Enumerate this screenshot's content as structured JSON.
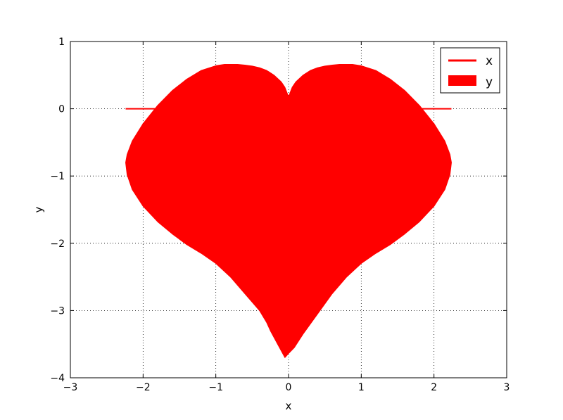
{
  "chart_data": {
    "type": "area",
    "xlabel": "x",
    "ylabel": "y",
    "xlim": [
      -3,
      3
    ],
    "ylim": [
      -4,
      1
    ],
    "xticks": [
      -3,
      -2,
      -1,
      0,
      1,
      2,
      3
    ],
    "yticks": [
      -4,
      -3,
      -2,
      -1,
      0,
      1
    ],
    "xtick_labels": [
      "−3",
      "−2",
      "−1",
      "0",
      "1",
      "2",
      "3"
    ],
    "ytick_labels": [
      "−4",
      "−3",
      "−2",
      "−1",
      "0",
      "1"
    ],
    "grid": true,
    "legend_placement": "top-right",
    "series": [
      {
        "name": "x",
        "kind": "line",
        "color": "#ff0000",
        "x": [
          -2.24,
          2.24
        ],
        "y": [
          0,
          0
        ]
      },
      {
        "name": "y",
        "kind": "fill",
        "color": "#ff0000",
        "outline": [
          [
            0.0,
            0.18
          ],
          [
            0.05,
            0.32
          ],
          [
            0.1,
            0.4
          ],
          [
            0.2,
            0.5
          ],
          [
            0.3,
            0.57
          ],
          [
            0.4,
            0.61
          ],
          [
            0.5,
            0.635
          ],
          [
            0.6,
            0.65
          ],
          [
            0.7,
            0.66
          ],
          [
            0.8,
            0.66
          ],
          [
            0.88,
            0.66
          ],
          [
            1.0,
            0.64
          ],
          [
            1.2,
            0.57
          ],
          [
            1.4,
            0.44
          ],
          [
            1.6,
            0.27
          ],
          [
            1.8,
            0.05
          ],
          [
            2.0,
            -0.22
          ],
          [
            2.15,
            -0.48
          ],
          [
            2.22,
            -0.68
          ],
          [
            2.24,
            -0.8
          ],
          [
            2.22,
            -0.98
          ],
          [
            2.15,
            -1.2
          ],
          [
            2.0,
            -1.45
          ],
          [
            1.8,
            -1.68
          ],
          [
            1.6,
            -1.86
          ],
          [
            1.4,
            -2.02
          ],
          [
            1.2,
            -2.15
          ],
          [
            1.0,
            -2.3
          ],
          [
            0.8,
            -2.5
          ],
          [
            0.6,
            -2.75
          ],
          [
            0.4,
            -3.05
          ],
          [
            0.2,
            -3.35
          ],
          [
            0.08,
            -3.55
          ],
          [
            0.0,
            -3.64
          ],
          [
            -0.05,
            -3.7
          ],
          [
            -0.15,
            -3.5
          ],
          [
            -0.25,
            -3.3
          ],
          [
            -0.3,
            -3.18
          ],
          [
            -0.4,
            -3.0
          ],
          [
            -0.6,
            -2.75
          ],
          [
            -0.8,
            -2.5
          ],
          [
            -1.0,
            -2.3
          ],
          [
            -1.2,
            -2.15
          ],
          [
            -1.4,
            -2.02
          ],
          [
            -1.6,
            -1.86
          ],
          [
            -1.8,
            -1.68
          ],
          [
            -2.0,
            -1.45
          ],
          [
            -2.15,
            -1.2
          ],
          [
            -2.22,
            -0.98
          ],
          [
            -2.24,
            -0.8
          ],
          [
            -2.22,
            -0.68
          ],
          [
            -2.15,
            -0.48
          ],
          [
            -2.0,
            -0.22
          ],
          [
            -1.8,
            0.05
          ],
          [
            -1.6,
            0.27
          ],
          [
            -1.4,
            0.44
          ],
          [
            -1.2,
            0.57
          ],
          [
            -1.0,
            0.64
          ],
          [
            -0.88,
            0.66
          ],
          [
            -0.8,
            0.66
          ],
          [
            -0.7,
            0.66
          ],
          [
            -0.6,
            0.65
          ],
          [
            -0.5,
            0.635
          ],
          [
            -0.4,
            0.61
          ],
          [
            -0.3,
            0.57
          ],
          [
            -0.2,
            0.5
          ],
          [
            -0.1,
            0.4
          ],
          [
            -0.05,
            0.32
          ],
          [
            0.0,
            0.18
          ]
        ]
      }
    ]
  }
}
